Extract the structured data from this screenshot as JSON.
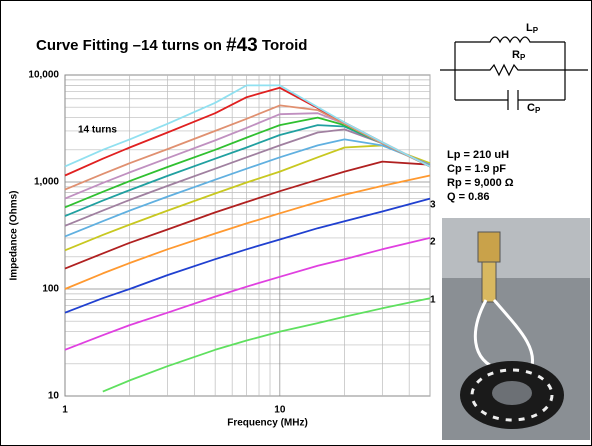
{
  "slide": {
    "title": "Curve Fitting –14 turns on ",
    "title_emph": "#43",
    "title_end": " Toroid",
    "circuit": [
      {
        "main": "L",
        "sub": "P"
      },
      {
        "main": "R",
        "sub": "P"
      },
      {
        "main": "C",
        "sub": "P"
      }
    ],
    "params": [
      "Lp = 210 uH",
      "Cp = 1.9 pF",
      "Rp = 9,000 Ω",
      "Q = 0.86"
    ]
  },
  "chart_data": {
    "type": "line",
    "x_label": "Frequency (MHz)",
    "y_label": "Impedance (Ohms)",
    "log_x": true,
    "log_y": true,
    "grid": true,
    "xlim": [
      1,
      50
    ],
    "ylim": [
      10,
      10000
    ],
    "xticks": [
      1,
      10
    ],
    "yticks": [
      {
        "value": 10000,
        "label": "10,000"
      },
      {
        "value": 1000,
        "label": "1,000"
      },
      100,
      10
    ],
    "annotations": [
      "14 turns",
      "3",
      "2",
      "1"
    ],
    "x": [
      1,
      1.5,
      2,
      3,
      5,
      7,
      10,
      15,
      20,
      30,
      50
    ],
    "series": [
      {
        "color": "#5fe05f",
        "values": [
          null,
          11,
          14,
          19,
          27,
          33,
          40,
          48,
          55,
          66,
          82
        ]
      },
      {
        "color": "#e040e0",
        "values": [
          27,
          37,
          46,
          60,
          85,
          105,
          130,
          165,
          190,
          235,
          300
        ]
      },
      {
        "color": "#2040d0",
        "values": [
          60,
          82,
          100,
          135,
          190,
          235,
          290,
          370,
          430,
          530,
          700
        ]
      },
      {
        "color": "#ff9930",
        "values": [
          100,
          140,
          175,
          235,
          330,
          410,
          510,
          650,
          760,
          920,
          1150
        ]
      },
      {
        "color": "#b02020",
        "values": [
          155,
          215,
          270,
          360,
          520,
          650,
          820,
          1050,
          1250,
          1550,
          1450
        ]
      },
      {
        "color": "#c8c820",
        "values": [
          230,
          320,
          400,
          540,
          780,
          990,
          1250,
          1700,
          2100,
          2200,
          1500
        ]
      },
      {
        "color": "#60b0e0",
        "values": [
          310,
          430,
          540,
          730,
          1050,
          1330,
          1700,
          2200,
          2500,
          2200,
          1450
        ]
      },
      {
        "color": "#a080a0",
        "values": [
          390,
          540,
          680,
          920,
          1330,
          1700,
          2200,
          2900,
          3100,
          2300,
          1420
        ]
      },
      {
        "color": "#20a0a0",
        "values": [
          480,
          670,
          840,
          1140,
          1650,
          2100,
          2750,
          3400,
          3300,
          2300,
          1400
        ]
      },
      {
        "color": "#30c030",
        "values": [
          580,
          810,
          1020,
          1380,
          2000,
          2600,
          3400,
          4000,
          3400,
          2300,
          1400
        ]
      },
      {
        "color": "#c090c0",
        "values": [
          700,
          980,
          1230,
          1670,
          2450,
          3200,
          4300,
          4400,
          3500,
          2300,
          1400
        ]
      },
      {
        "color": "#e09070",
        "values": [
          850,
          1190,
          1500,
          2030,
          3000,
          3900,
          5200,
          4700,
          3500,
          2300,
          1400
        ]
      },
      {
        "color": "#e02020",
        "values": [
          1150,
          1650,
          2100,
          2900,
          4400,
          6200,
          7600,
          4900,
          3600,
          2350,
          1400
        ]
      },
      {
        "color": "#90e0f0",
        "values": [
          1400,
          2000,
          2500,
          3500,
          5500,
          8000,
          8000,
          5000,
          3600,
          2350,
          1400
        ]
      }
    ]
  }
}
